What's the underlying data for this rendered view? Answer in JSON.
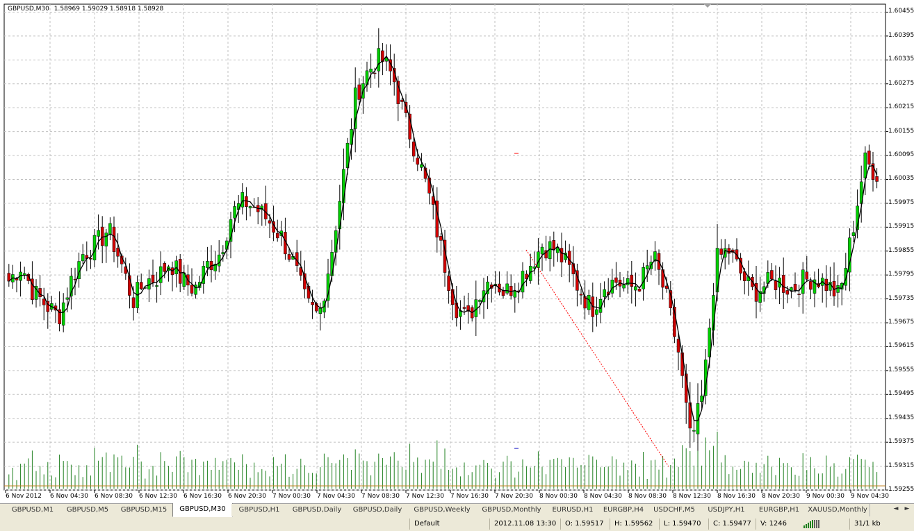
{
  "chart": {
    "symbol": "GBPUSD,M30",
    "ohlc_header": "1.58969 1.59029 1.58918 1.58928",
    "colors": {
      "bull": "#00d000",
      "bear": "#d00000",
      "wick": "#000000",
      "grid": "#c0c0c0",
      "volume": "#208020",
      "ma": "#000000",
      "trendline": "#ff0000"
    },
    "price_scale": [
      "1.60455",
      "1.60395",
      "1.60335",
      "1.60275",
      "1.60215",
      "1.60155",
      "1.60095",
      "1.60035",
      "1.59975",
      "1.59915",
      "1.59855",
      "1.59795",
      "1.59735",
      "1.59675",
      "1.59615",
      "1.59555",
      "1.59495",
      "1.59435",
      "1.59375",
      "1.59315",
      "1.59255"
    ],
    "time_scale": [
      "6 Nov 2012",
      "6 Nov 04:30",
      "6 Nov 08:30",
      "6 Nov 12:30",
      "6 Nov 16:30",
      "6 Nov 20:30",
      "7 Nov 00:30",
      "7 Nov 04:30",
      "7 Nov 08:30",
      "7 Nov 12:30",
      "7 Nov 16:30",
      "7 Nov 20:30",
      "8 Nov 00:30",
      "8 Nov 04:30",
      "8 Nov 08:30",
      "8 Nov 12:30",
      "8 Nov 16:30",
      "8 Nov 20:30",
      "9 Nov 00:30",
      "9 Nov 04:30"
    ]
  },
  "chart_data": {
    "type": "candlestick",
    "symbol": "GBPUSD",
    "timeframe": "M30",
    "ylim": [
      1.59255,
      1.60475
    ],
    "close_path": [
      1.5978,
      1.5982,
      1.5975,
      1.5972,
      1.5969,
      1.5978,
      1.5985,
      1.5987,
      1.5991,
      1.5983,
      1.5973,
      1.5978,
      1.5979,
      1.5983,
      1.5978,
      1.5976,
      1.5982,
      1.5985,
      1.5995,
      1.5998,
      1.5996,
      1.5993,
      1.5989,
      1.5982,
      1.5972,
      1.5969,
      1.5985,
      1.6005,
      1.6025,
      1.6031,
      1.6034,
      1.6029,
      1.6018,
      1.6009,
      1.5998,
      1.5984,
      1.5972,
      1.5968,
      1.5976,
      1.5979,
      1.5975,
      1.5978,
      1.5982,
      1.5987,
      1.5986,
      1.5982,
      1.5976,
      1.5971,
      1.5977,
      1.5978,
      1.5976,
      1.5978,
      1.5984,
      1.5974,
      1.596,
      1.5937,
      1.595,
      1.5983,
      1.5986,
      1.598,
      1.5975,
      1.5977,
      1.5978,
      1.5976,
      1.5978,
      1.5979,
      1.5977,
      1.5974,
      1.599,
      1.6008,
      1.6005
    ]
  },
  "tabs": [
    "GBPUSD,M1",
    "GBPUSD,M5",
    "GBPUSD,M15",
    "GBPUSD,M30",
    "GBPUSD,H1",
    "GBPUSD,Daily",
    "GBPUSD,Daily",
    "GBPUSD,Weekly",
    "GBPUSD,Monthly",
    "EURUSD,H1",
    "EURGBP,H4",
    "USDCHF,M5",
    "USDJPY,H1",
    "EURGBP,H1",
    "XAUUSD,Monthly"
  ],
  "active_tab": "GBPUSD,M30",
  "tab_arrows": {
    "left": "◄",
    "right": "►"
  },
  "status": {
    "profile": "Default",
    "datetime": "2012.11.08 13:30",
    "open": "O: 1.59517",
    "high": "H: 1.59562",
    "low": "L: 1.59470",
    "close": "C: 1.59477",
    "volume": "V: 1246",
    "traffic": "31/1 kb"
  }
}
